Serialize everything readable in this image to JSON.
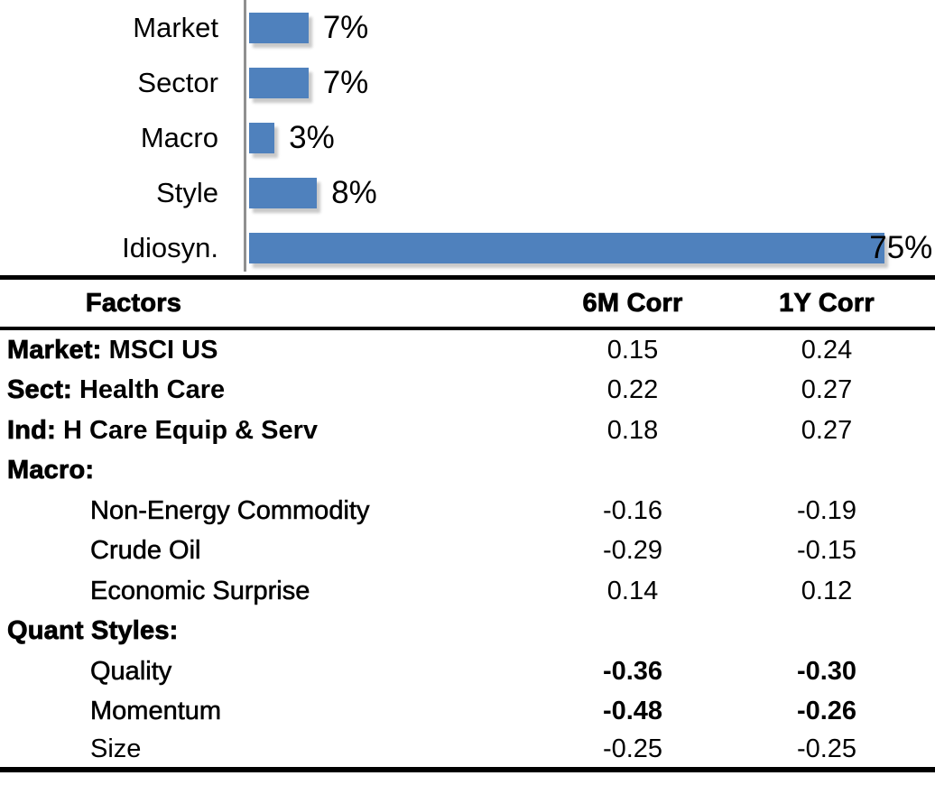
{
  "chart_data": [
    {
      "type": "bar",
      "orientation": "horizontal",
      "categories": [
        "Market",
        "Sector",
        "Macro",
        "Style",
        "Idiosyn."
      ],
      "values": [
        7,
        7,
        3,
        8,
        75
      ],
      "value_labels": [
        "7%",
        "7%",
        "3%",
        "8%",
        "75%"
      ],
      "title": "",
      "xlabel": "",
      "ylabel": "",
      "xlim": [
        0,
        78
      ],
      "grid": false,
      "legend": false,
      "bar_color": "#4f81bd",
      "axis_color": "#8f8f8f"
    },
    {
      "type": "table",
      "columns": [
        "Factors",
        "6M Corr",
        "1Y Corr"
      ],
      "rows": [
        [
          "Market: MSCI US",
          "0.15",
          "0.24"
        ],
        [
          "Sect: Health Care",
          "0.22",
          "0.27"
        ],
        [
          "Ind: H Care Equip & Serv",
          "0.18",
          "0.27"
        ],
        [
          "Macro:",
          "",
          ""
        ],
        [
          "Non-Energy Commodity",
          "-0.16",
          "-0.19"
        ],
        [
          "Crude Oil",
          "-0.29",
          "-0.15"
        ],
        [
          "Economic Surprise",
          "0.14",
          "0.12"
        ],
        [
          "Quant Styles:",
          "",
          ""
        ],
        [
          "Quality",
          "-0.36",
          "-0.30"
        ],
        [
          "Momentum",
          "-0.48",
          "-0.26"
        ],
        [
          "Size",
          "-0.25",
          "-0.25"
        ]
      ]
    }
  ],
  "table": {
    "headers": {
      "factors": "Factors",
      "sixm": "6M Corr",
      "oney": "1Y Corr"
    },
    "rows": [
      {
        "prefix": "Market:",
        "name": " MSCI US",
        "v6m": "0.15",
        "v1y": "0.24"
      },
      {
        "prefix": "Sect:",
        "name": " Health Care",
        "v6m": "0.22",
        "v1y": "0.27"
      },
      {
        "prefix": "Ind:",
        "name": " H Care Equip & Serv",
        "v6m": "0.18",
        "v1y": "0.27"
      },
      {
        "prefix": "Macro:",
        "name": "",
        "v6m": "",
        "v1y": ""
      },
      {
        "prefix": "",
        "name": "Non-Energy Commodity",
        "v6m": "-0.16",
        "v1y": "-0.19"
      },
      {
        "prefix": "",
        "name": "Crude Oil",
        "v6m": "-0.29",
        "v1y": "-0.15"
      },
      {
        "prefix": "",
        "name": "Economic Surprise",
        "v6m": "0.14",
        "v1y": "0.12"
      },
      {
        "prefix": "Quant Styles:",
        "name": "",
        "v6m": "",
        "v1y": ""
      },
      {
        "prefix": "",
        "name": "Quality",
        "v6m": "-0.36",
        "v1y": "-0.30"
      },
      {
        "prefix": "",
        "name": "Momentum",
        "v6m": "-0.48",
        "v1y": "-0.26"
      },
      {
        "prefix": "",
        "name": "Size",
        "v6m": "-0.25",
        "v1y": "-0.25"
      }
    ]
  },
  "colors": {
    "bar": "#4f81bd",
    "axis": "#8f8f8f",
    "text": "#000000"
  }
}
